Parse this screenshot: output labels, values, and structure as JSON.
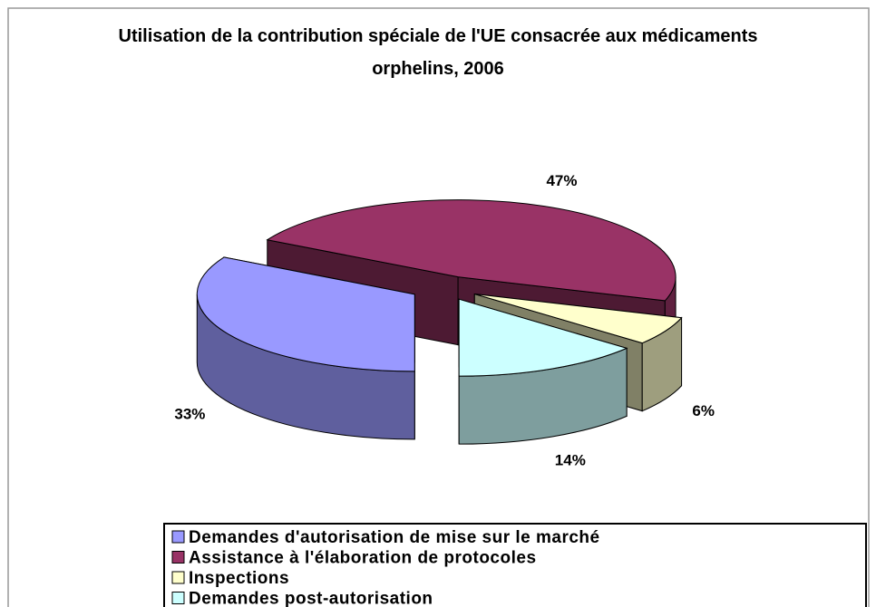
{
  "chart_data": {
    "type": "pie3d",
    "title": "Utilisation de la contribution spéciale de l'UE consacrée aux médicaments orphelins, 2006",
    "categories": [
      "Demandes d'autorisation de mise sur le marché",
      "Assistance à l'élaboration de protocoles",
      "Inspections",
      "Demandes post-autorisation"
    ],
    "values": [
      33,
      47,
      6,
      14
    ],
    "value_labels": [
      "33%",
      "47%",
      "6%",
      "14%"
    ],
    "colors": [
      "#9999ff",
      "#993366",
      "#ffffcc",
      "#ccffff"
    ],
    "legend": "bottom"
  }
}
